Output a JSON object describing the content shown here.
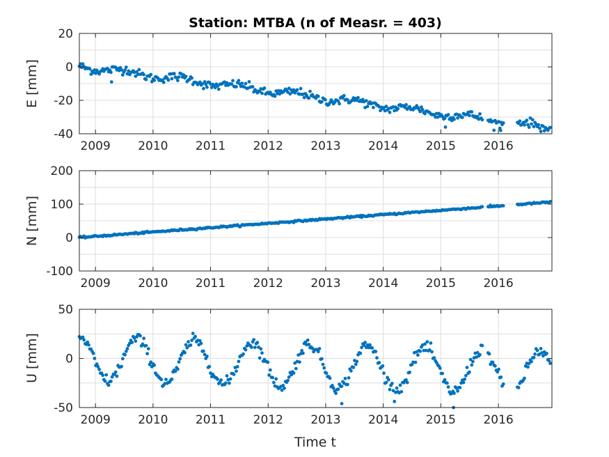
{
  "chart_data": {
    "type": "scatter",
    "title": "Station: MTBA (n of Measr. = 403)",
    "xlabel": "Time t",
    "xlim": [
      2008.72,
      2016.93
    ],
    "xticks": [
      "2009",
      "2010",
      "2011",
      "2012",
      "2013",
      "2014",
      "2015",
      "2016"
    ],
    "color": "#0072BD",
    "grid": true,
    "panels": [
      {
        "ylabel": "E [mm]",
        "ylim": [
          -40,
          20
        ],
        "yticks": [
          "-40",
          "-20",
          "0",
          "20"
        ],
        "trend": [
          [
            2008.72,
            0.5
          ],
          [
            2016.9,
            -36.5
          ]
        ],
        "seasonal_amplitude": 1.5,
        "noise": 1.3,
        "outliers": [
          [
            2016.04,
            -38
          ],
          [
            2015.08,
            -36
          ],
          [
            2009.28,
            -9
          ]
        ]
      },
      {
        "ylabel": "N [mm]",
        "ylim": [
          -100,
          200
        ],
        "yticks": [
          "-100",
          "0",
          "100",
          "200"
        ],
        "trend": [
          [
            2008.72,
            0
          ],
          [
            2016.9,
            106
          ]
        ],
        "seasonal_amplitude": 0,
        "noise": 1.2,
        "outliers": []
      },
      {
        "ylabel": "U [mm]",
        "ylim": [
          -50,
          50
        ],
        "yticks": [
          "-50",
          "0",
          "50"
        ],
        "trend": [
          [
            2008.72,
            0
          ],
          [
            2016.9,
            -15
          ]
        ],
        "seasonal_amplitude": 22,
        "seasonal_peak": 0.72,
        "noise": 3,
        "outliers": [
          [
            2015.22,
            -50
          ],
          [
            2013.28,
            -46
          ]
        ]
      }
    ],
    "gaps": [
      [
        2015.72,
        2015.82
      ],
      [
        2016.1,
        2016.33
      ]
    ]
  }
}
